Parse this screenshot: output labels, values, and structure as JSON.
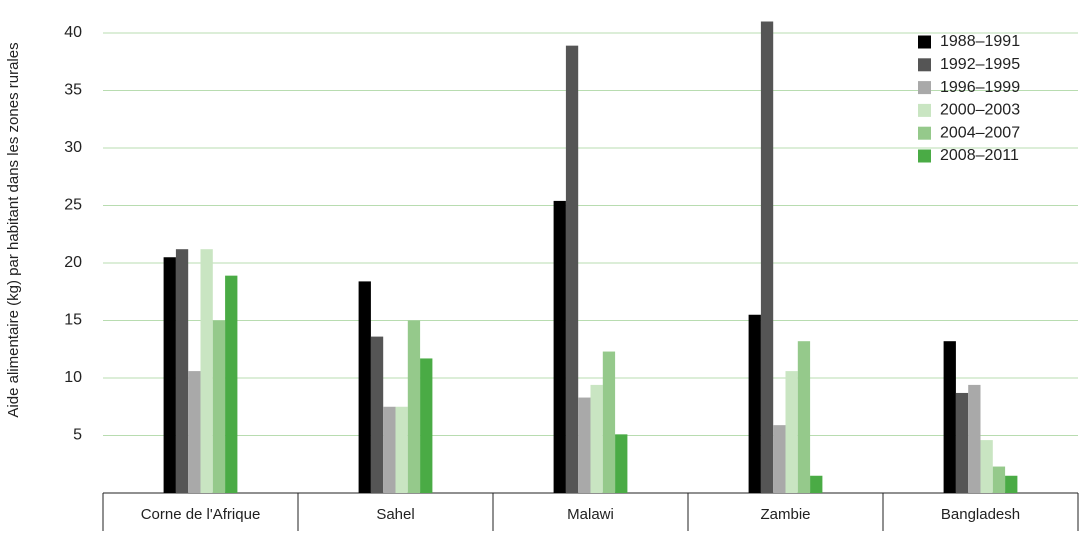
{
  "chart_data": {
    "type": "bar",
    "y_label": "Aide alimentaire (kg) par habitant dans les zones rurales",
    "categories": [
      "Corne de l'Afrique",
      "Sahel",
      "Malawi",
      "Zambie",
      "Bangladesh"
    ],
    "series": [
      {
        "name": "1988–1991",
        "color": "#000000",
        "values": [
          20.5,
          18.4,
          25.4,
          15.5,
          13.2
        ]
      },
      {
        "name": "1992–1995",
        "color": "#555555",
        "values": [
          21.2,
          13.6,
          38.9,
          41,
          8.7
        ]
      },
      {
        "name": "1996–1999",
        "color": "#a9a9a9",
        "values": [
          10.6,
          7.5,
          8.3,
          5.9,
          9.4
        ]
      },
      {
        "name": "2000–2003",
        "color": "#c9e5c2",
        "values": [
          21.2,
          7.5,
          9.4,
          10.6,
          4.6
        ]
      },
      {
        "name": "2004–2007",
        "color": "#95c98b",
        "values": [
          15,
          15,
          12.3,
          13.2,
          2.3
        ]
      },
      {
        "name": "2008–2011",
        "color": "#4aab45",
        "values": [
          18.9,
          11.7,
          5.1,
          1.5,
          1.5
        ]
      }
    ],
    "ylim": [
      0,
      42
    ],
    "yticks": [
      5,
      10,
      15,
      20,
      25,
      30,
      35,
      40
    ],
    "grid": true,
    "legend": "top-right"
  }
}
